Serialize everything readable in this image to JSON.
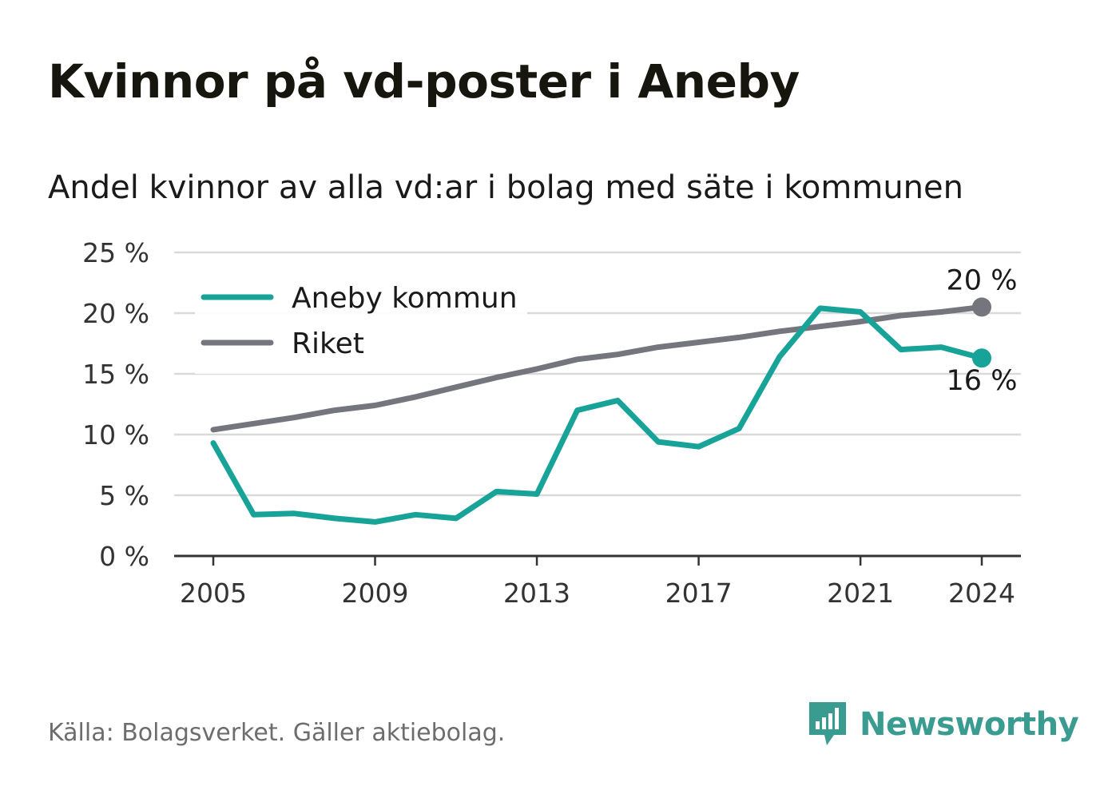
{
  "title": "Kvinnor på vd-poster i Aneby",
  "subtitle": "Andel kvinnor av alla vd:ar i bolag med säte i kommunen",
  "source": "Källa: Bolagsverket. Gäller aktiebolag.",
  "brand": {
    "name": "Newsworthy",
    "icon": "newsworthy-logo-icon",
    "color": "#3a9b91"
  },
  "chart_data": {
    "type": "line",
    "x": [
      2005,
      2006,
      2007,
      2008,
      2009,
      2010,
      2011,
      2012,
      2013,
      2014,
      2015,
      2016,
      2017,
      2018,
      2019,
      2020,
      2021,
      2022,
      2023,
      2024
    ],
    "series": [
      {
        "name": "Aneby kommun",
        "color": "#17a398",
        "values": [
          9.3,
          3.4,
          3.5,
          3.1,
          2.8,
          3.4,
          3.1,
          5.3,
          5.1,
          12.0,
          12.8,
          9.4,
          9.0,
          10.5,
          16.4,
          20.4,
          20.1,
          17.0,
          17.2,
          16.3
        ],
        "end_label": "16 %"
      },
      {
        "name": "Riket",
        "color": "#75757d",
        "values": [
          10.4,
          10.9,
          11.4,
          12.0,
          12.4,
          13.1,
          13.9,
          14.7,
          15.4,
          16.2,
          16.6,
          17.2,
          17.6,
          18.0,
          18.5,
          18.9,
          19.3,
          19.8,
          20.1,
          20.5
        ],
        "end_label": "20 %"
      }
    ],
    "xticks": [
      "2005",
      "2009",
      "2013",
      "2017",
      "2021",
      "2024"
    ],
    "yticks": [
      "0 %",
      "5 %",
      "10 %",
      "15 %",
      "20 %",
      "25 %"
    ],
    "ylim": [
      0,
      25
    ],
    "grid": true,
    "legend": "top-left"
  }
}
